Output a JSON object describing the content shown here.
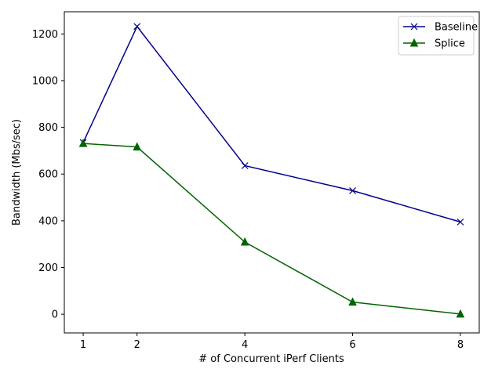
{
  "chart_data": {
    "type": "line",
    "title": "",
    "xlabel": "# of Concurrent iPerf Clients",
    "ylabel": "Bandwidth (Mbs/sec)",
    "x": [
      1,
      2,
      4,
      6,
      8
    ],
    "xticks": [
      1,
      2,
      4,
      6,
      8
    ],
    "yticks": [
      0,
      200,
      400,
      600,
      800,
      1000,
      1200
    ],
    "xlim": [
      0.65,
      8.35
    ],
    "ylim": [
      -80,
      1295
    ],
    "grid": false,
    "legend_position": "top-right",
    "series": [
      {
        "name": "Baseline",
        "values": [
          735,
          1232,
          636,
          529,
          395
        ],
        "color": "#00008b",
        "marker": "x"
      },
      {
        "name": "Splice",
        "values": [
          731,
          716,
          309,
          52,
          1
        ],
        "color": "#006400",
        "marker": "triangle"
      }
    ]
  }
}
